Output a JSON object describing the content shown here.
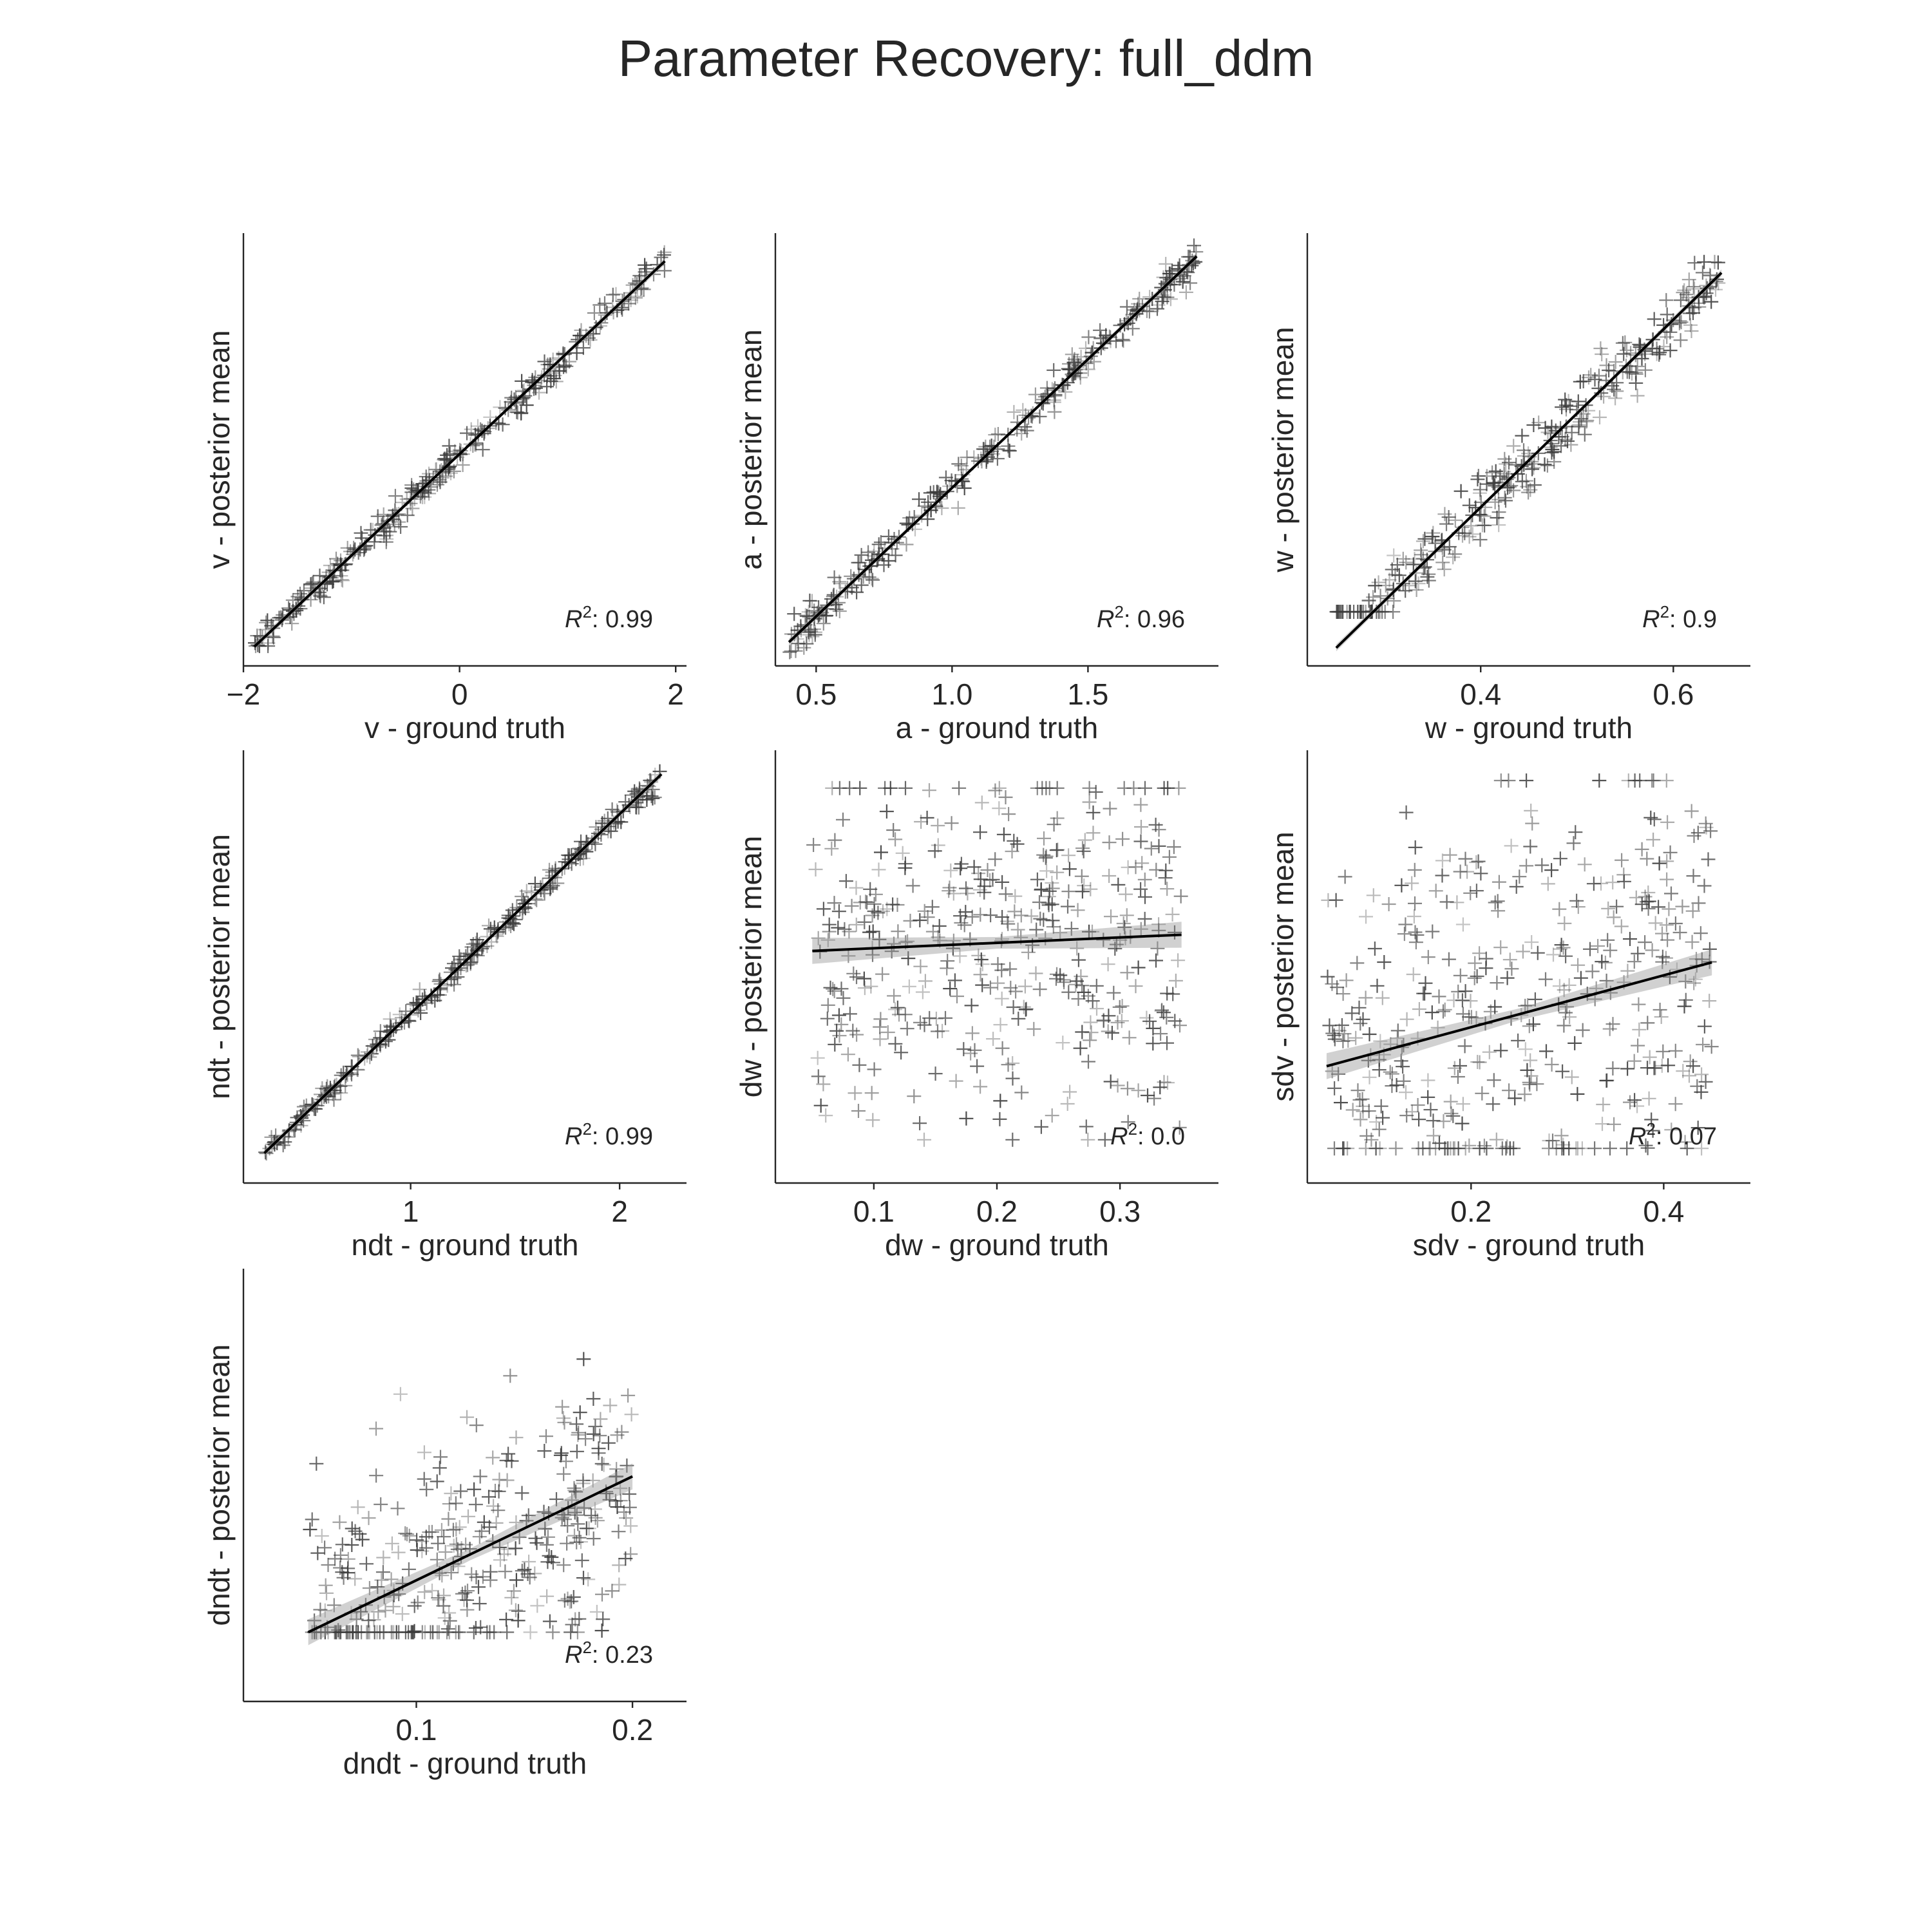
{
  "figure": {
    "title": "Parameter Recovery: full_ddm",
    "colors": {
      "background": "#ffffff",
      "axes": "#262626",
      "regression_line": "#000000",
      "marker": "#3a3a3a",
      "ci_band": "#9a9a9a"
    },
    "marker_symbol": "+"
  },
  "chart_data": [
    {
      "type": "scatter",
      "param": "v",
      "xlabel": "v - ground truth",
      "ylabel": "v - posterior mean",
      "xlim": [
        -2.0,
        2.1
      ],
      "ylim": [
        -2.05,
        2.3
      ],
      "xticks": [
        -2,
        0,
        2
      ],
      "xtick_labels": [
        "−2",
        "0",
        "2"
      ],
      "r2_label": "0.99",
      "r2": 0.99,
      "fit": {
        "slope": 1.02,
        "intercept": 0.08
      },
      "x_range": [
        -1.9,
        1.9
      ],
      "noise": 0.1,
      "n_points": 320,
      "clip": [
        -1.85,
        null
      ]
    },
    {
      "type": "scatter",
      "param": "a",
      "xlabel": "a - ground truth",
      "ylabel": "a - posterior mean",
      "xlim": [
        0.35,
        1.98
      ],
      "ylim": [
        0.3,
        2.05
      ],
      "xticks": [
        0.5,
        1.0,
        1.5
      ],
      "xtick_labels": [
        "0.5",
        "1.0",
        "1.5"
      ],
      "r2_label": "0.96",
      "r2": 0.96,
      "fit": {
        "slope": 1.04,
        "intercept": -0.02
      },
      "x_range": [
        0.4,
        1.9
      ],
      "noise": 0.05,
      "n_points": 300,
      "clip": [
        null,
        null
      ]
    },
    {
      "type": "scatter",
      "param": "w",
      "xlabel": "w - ground truth",
      "ylabel": "w - posterior mean",
      "xlim": [
        0.22,
        0.68
      ],
      "ylim": [
        0.2,
        0.8
      ],
      "xticks": [
        0.4,
        0.6
      ],
      "xtick_labels": [
        "0.4",
        "0.6"
      ],
      "r2_label": "0.9",
      "r2": 0.9,
      "fit": {
        "slope": 1.3,
        "intercept": -0.1
      },
      "x_range": [
        0.25,
        0.65
      ],
      "noise": 0.03,
      "n_points": 320,
      "clip": [
        0.275,
        0.76
      ]
    },
    {
      "type": "scatter",
      "param": "ndt",
      "xlabel": "ndt - ground truth",
      "ylabel": "ndt - posterior mean",
      "xlim": [
        0.2,
        2.32
      ],
      "ylim": [
        0.15,
        2.32
      ],
      "xticks": [
        1,
        2
      ],
      "xtick_labels": [
        "1",
        "2"
      ],
      "r2_label": "0.99",
      "r2": 0.99,
      "fit": {
        "slope": 1.0,
        "intercept": 0.0
      },
      "x_range": [
        0.3,
        2.2
      ],
      "noise": 0.04,
      "n_points": 300,
      "clip": [
        null,
        null
      ]
    },
    {
      "type": "scatter",
      "param": "dw",
      "xlabel": "dw - ground truth",
      "ylabel": "dw - posterior mean",
      "xlim": [
        0.02,
        0.38
      ],
      "ylim": [
        0.0,
        0.4
      ],
      "xticks": [
        0.1,
        0.2,
        0.3
      ],
      "xtick_labels": [
        "0.1",
        "0.2",
        "0.3"
      ],
      "r2_label": "0.0",
      "r2": 0.0,
      "fit": {
        "slope": 0.05,
        "intercept": 0.212
      },
      "x_range": [
        0.05,
        0.35
      ],
      "noise": 0.12,
      "n_points": 420,
      "clip": [
        0.04,
        0.365
      ]
    },
    {
      "type": "scatter",
      "param": "sdv",
      "xlabel": "sdv - ground truth",
      "ylabel": "sdv - posterior mean",
      "xlim": [
        0.03,
        0.49
      ],
      "ylim": [
        0.0,
        0.5
      ],
      "xticks": [
        0.2,
        0.4
      ],
      "xtick_labels": [
        "0.2",
        "0.4"
      ],
      "r2_label": "0.07",
      "r2": 0.07,
      "fit": {
        "slope": 0.3,
        "intercept": 0.12
      },
      "x_range": [
        0.05,
        0.45
      ],
      "noise": 0.16,
      "n_points": 420,
      "clip": [
        0.04,
        0.465
      ]
    },
    {
      "type": "scatter",
      "param": "dndt",
      "xlabel": "dndt - ground truth",
      "ylabel": "dndt - posterior mean",
      "xlim": [
        0.02,
        0.225
      ],
      "ylim": [
        0.0,
        0.25
      ],
      "xticks": [
        0.1,
        0.2
      ],
      "xtick_labels": [
        "0.1",
        "0.2"
      ],
      "r2_label": "0.23",
      "r2": 0.23,
      "fit": {
        "slope": 0.6,
        "intercept": 0.01
      },
      "x_range": [
        0.05,
        0.2
      ],
      "noise": 0.05,
      "n_points": 360,
      "clip": [
        0.04,
        0.235
      ]
    }
  ]
}
